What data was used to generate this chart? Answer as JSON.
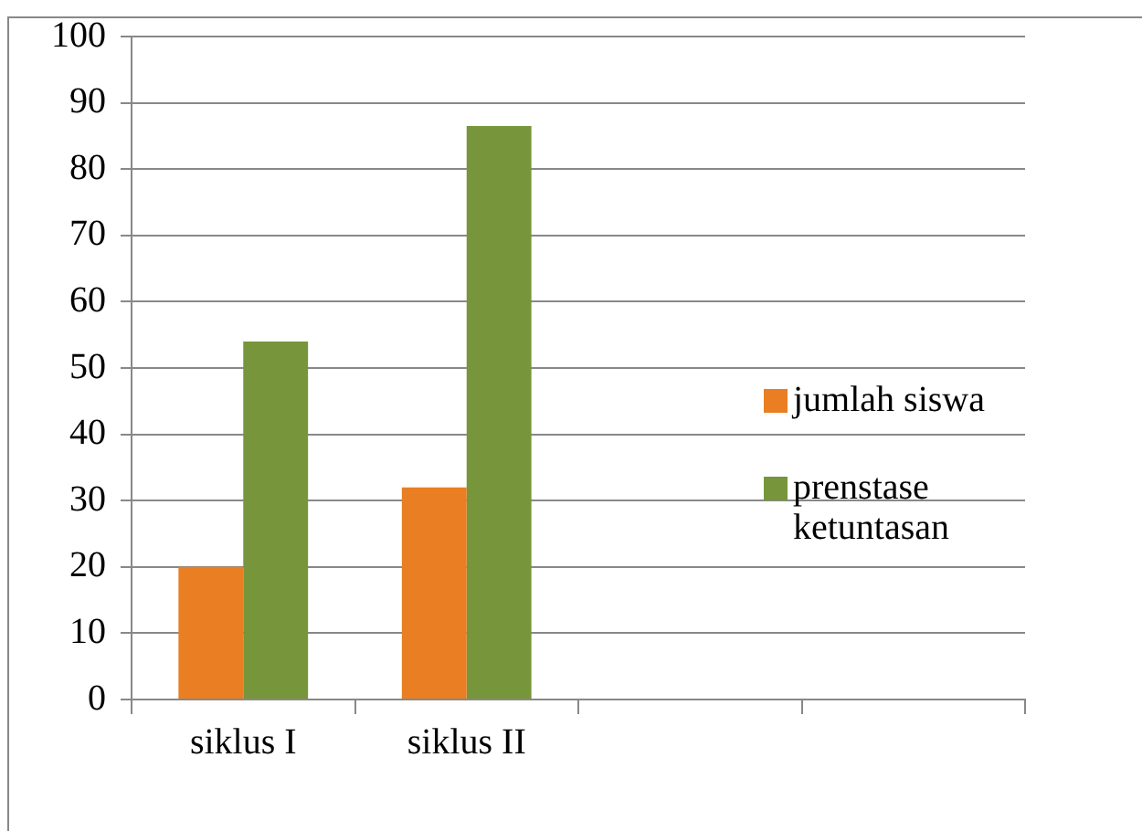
{
  "chart_data": {
    "type": "bar",
    "categories": [
      "siklus I",
      "siklus II",
      null,
      null
    ],
    "series": [
      {
        "name": "jumlah siswa",
        "color": "#e97f22",
        "values": [
          20,
          32,
          null,
          null
        ]
      },
      {
        "name": "prenstase ketuntasan",
        "color": "#77963b",
        "values": [
          54,
          86.5,
          null,
          null
        ]
      }
    ],
    "ylim": [
      0,
      100
    ],
    "yticks": [
      0,
      10,
      20,
      30,
      40,
      50,
      60,
      70,
      80,
      90,
      100
    ],
    "grid": "y",
    "legend": "right"
  }
}
